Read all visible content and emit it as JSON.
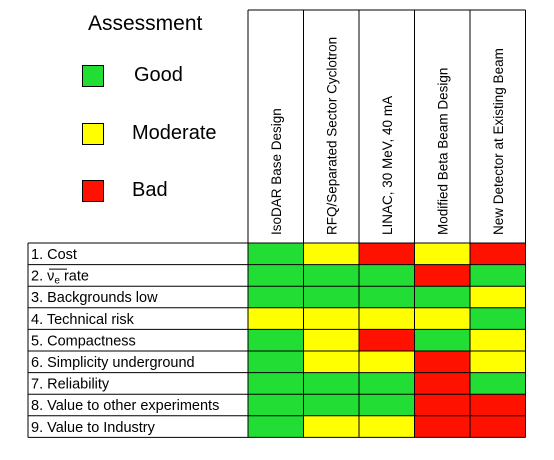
{
  "legend": {
    "title": "Assessment",
    "items": [
      {
        "key": "good",
        "label": "Good",
        "color": "#22dd33"
      },
      {
        "key": "moderate",
        "label": "Moderate",
        "color": "#ffff00"
      },
      {
        "key": "bad",
        "label": "Bad",
        "color": "#ff1100"
      }
    ]
  },
  "chart_data": {
    "type": "heatmap",
    "columns": [
      "IsoDAR Base Design",
      "RFQ/Separated Sector Cyclotron",
      "LINAC, 30 MeV, 40 mA",
      "Modified Beta Beam Design",
      "New Detector at Existing Beam"
    ],
    "rows": [
      {
        "label": "1. Cost",
        "values": [
          "good",
          "moderate",
          "bad",
          "moderate",
          "bad"
        ]
      },
      {
        "label": "2. ",
        "sub_symbol": "ν",
        "sub_script": "e",
        "suffix": " rate",
        "values": [
          "good",
          "good",
          "good",
          "bad",
          "good"
        ]
      },
      {
        "label": "3. Backgrounds low",
        "values": [
          "good",
          "good",
          "good",
          "good",
          "moderate"
        ]
      },
      {
        "label": "4. Technical risk",
        "values": [
          "moderate",
          "moderate",
          "moderate",
          "moderate",
          "good"
        ]
      },
      {
        "label": "5. Compactness",
        "values": [
          "good",
          "moderate",
          "bad",
          "good",
          "moderate"
        ]
      },
      {
        "label": "6. Simplicity underground",
        "values": [
          "good",
          "moderate",
          "moderate",
          "bad",
          "moderate"
        ]
      },
      {
        "label": "7. Reliability",
        "values": [
          "good",
          "good",
          "good",
          "bad",
          "good"
        ]
      },
      {
        "label": "8. Value to other experiments",
        "values": [
          "good",
          "good",
          "good",
          "bad",
          "bad"
        ]
      },
      {
        "label": "9. Value to Industry",
        "values": [
          "good",
          "moderate",
          "moderate",
          "bad",
          "bad"
        ]
      }
    ]
  }
}
